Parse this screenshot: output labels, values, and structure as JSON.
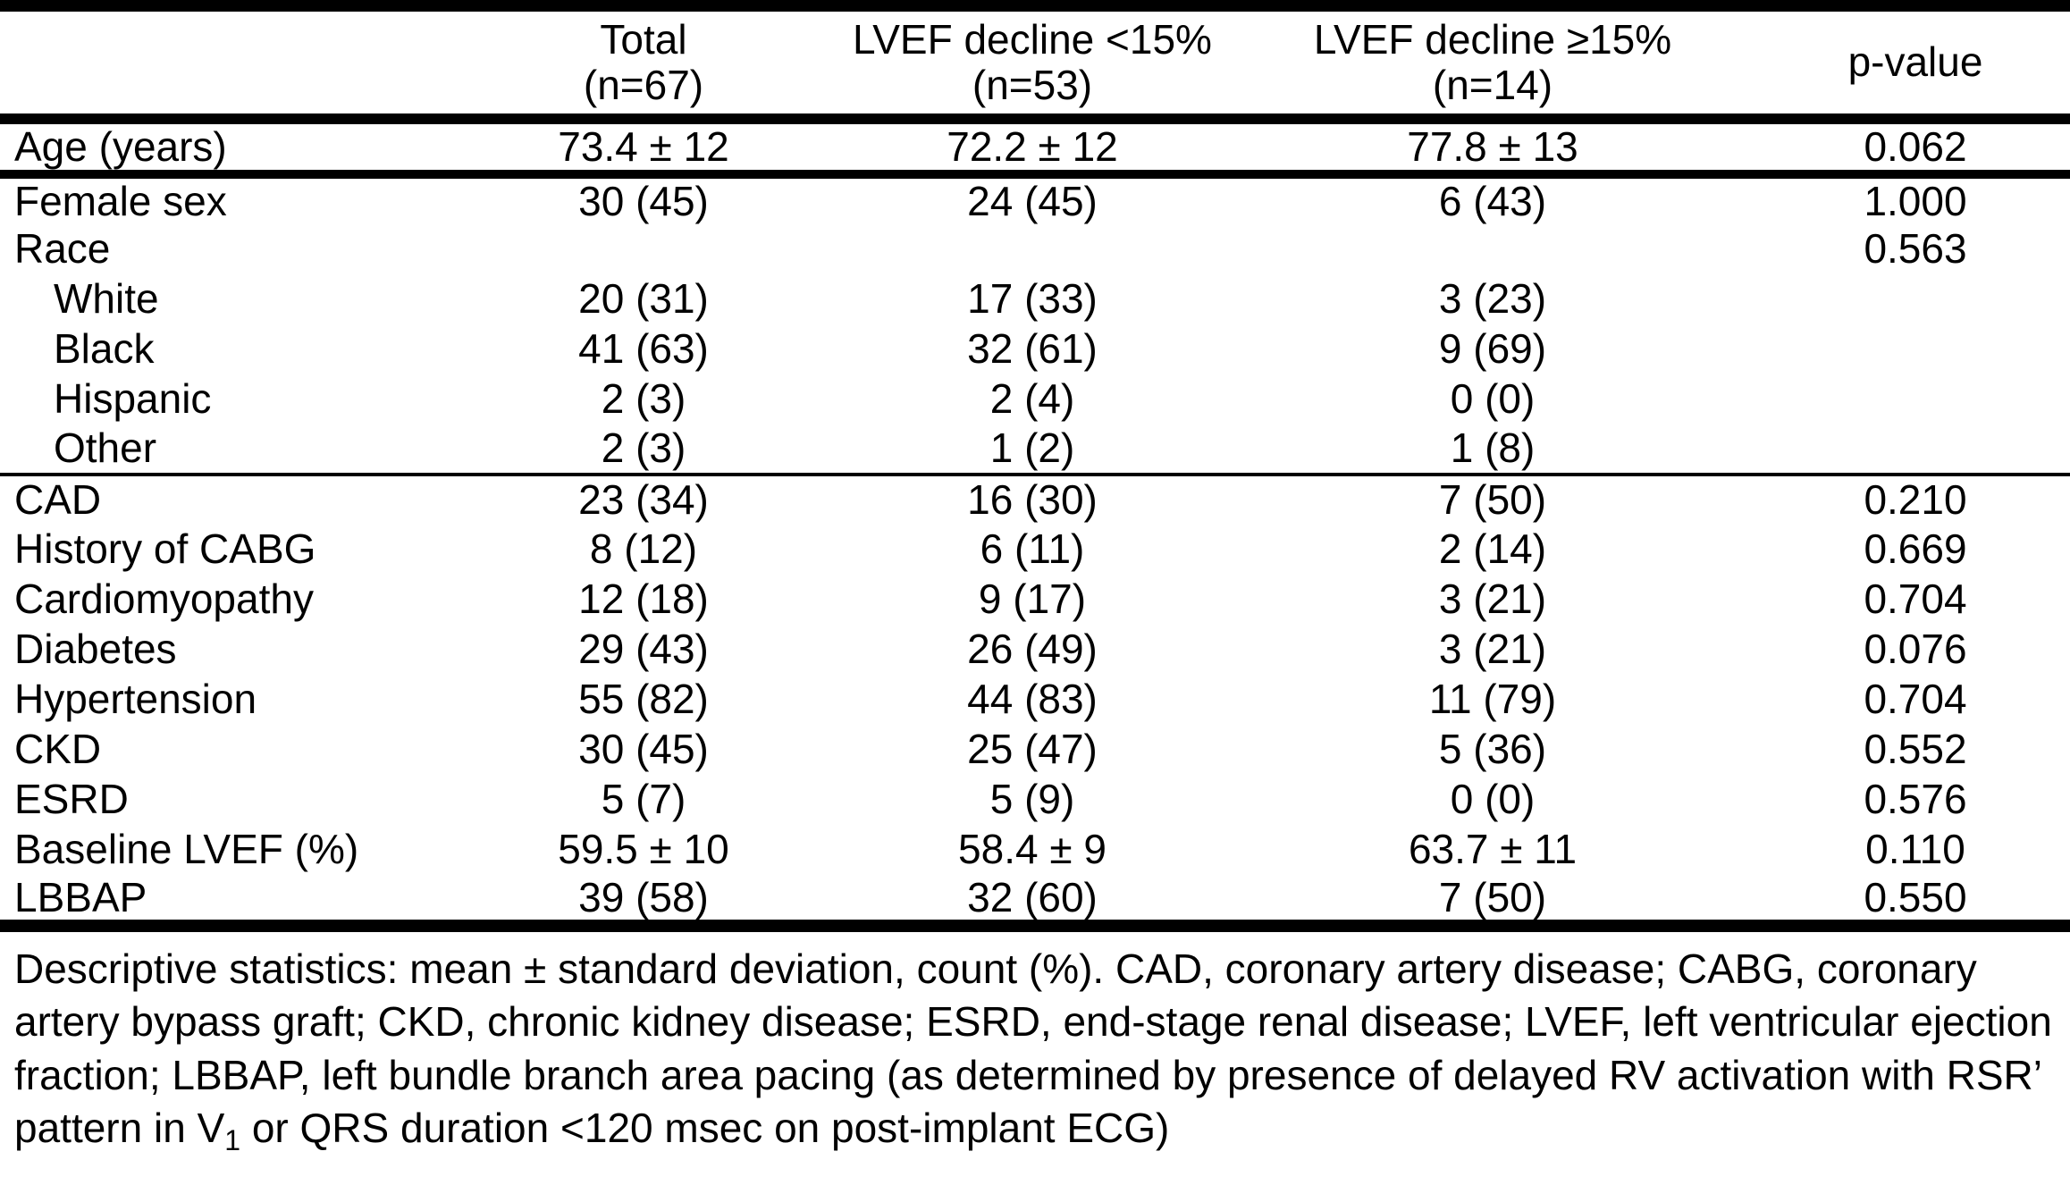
{
  "colors": {
    "text": "#000000",
    "background": "#ffffff",
    "rule": "#000000"
  },
  "table": {
    "headers": [
      {
        "line1": "",
        "line2": ""
      },
      {
        "line1": "Total",
        "line2": "(n=67)"
      },
      {
        "line1": "LVEF decline <15%",
        "line2": "(n=53)"
      },
      {
        "line1": "LVEF decline ≥15%",
        "line2": "(n=14)"
      },
      {
        "line1": "p-value",
        "line2": ""
      }
    ],
    "rows": [
      {
        "label": "Age (years)",
        "total": "73.4 ± 12",
        "decline_lt15": "72.2 ± 12",
        "decline_ge15": "77.8 ± 13",
        "p_value": "0.062"
      },
      {
        "label": "Female sex",
        "total": "30 (45)",
        "decline_lt15": "24 (45)",
        "decline_ge15": "6 (43)",
        "p_value": "1.000"
      },
      {
        "label": "Race",
        "total": "",
        "decline_lt15": "",
        "decline_ge15": "",
        "p_value": "0.563"
      },
      {
        "label": "White",
        "total": "20 (31)",
        "decline_lt15": "17 (33)",
        "decline_ge15": "3 (23)",
        "p_value": ""
      },
      {
        "label": "Black",
        "total": "41 (63)",
        "decline_lt15": "32 (61)",
        "decline_ge15": "9 (69)",
        "p_value": ""
      },
      {
        "label": "Hispanic",
        "total": "2 (3)",
        "decline_lt15": "2 (4)",
        "decline_ge15": "0 (0)",
        "p_value": ""
      },
      {
        "label": "Other",
        "total": "2 (3)",
        "decline_lt15": "1 (2)",
        "decline_ge15": "1 (8)",
        "p_value": ""
      },
      {
        "label": "CAD",
        "total": "23 (34)",
        "decline_lt15": "16 (30)",
        "decline_ge15": "7 (50)",
        "p_value": "0.210"
      },
      {
        "label": "History of CABG",
        "total": "8 (12)",
        "decline_lt15": "6 (11)",
        "decline_ge15": "2 (14)",
        "p_value": "0.669"
      },
      {
        "label": "Cardiomyopathy",
        "total": "12 (18)",
        "decline_lt15": "9 (17)",
        "decline_ge15": "3 (21)",
        "p_value": "0.704"
      },
      {
        "label": "Diabetes",
        "total": "29 (43)",
        "decline_lt15": "26 (49)",
        "decline_ge15": "3 (21)",
        "p_value": "0.076"
      },
      {
        "label": "Hypertension",
        "total": "55 (82)",
        "decline_lt15": "44 (83)",
        "decline_ge15": "11 (79)",
        "p_value": "0.704"
      },
      {
        "label": "CKD",
        "total": "30 (45)",
        "decline_lt15": "25 (47)",
        "decline_ge15": "5 (36)",
        "p_value": "0.552"
      },
      {
        "label": "ESRD",
        "total": "5 (7)",
        "decline_lt15": "5 (9)",
        "decline_ge15": "0 (0)",
        "p_value": "0.576"
      },
      {
        "label": "Baseline LVEF (%)",
        "total": "59.5 ± 10",
        "decline_lt15": "58.4 ± 9",
        "decline_ge15": "63.7 ± 11",
        "p_value": "0.110"
      },
      {
        "label": "LBBAP",
        "total": "39 (58)",
        "decline_lt15": "32 (60)",
        "decline_ge15": "7 (50)",
        "p_value": "0.550"
      }
    ]
  },
  "footnote": {
    "part1": "Descriptive statistics: mean ± standard deviation, count (%). CAD, coronary artery disease; CABG, coronary artery bypass graft; CKD, chronic kidney disease; ESRD, end-stage renal disease; LVEF, left ventricular ejection fraction; LBBAP, left bundle branch area pacing (as determined by presence of delayed RV activation with RSR’ pattern in V",
    "subscript": "1",
    "part2": " or QRS duration <120 msec on post-implant ECG)"
  }
}
